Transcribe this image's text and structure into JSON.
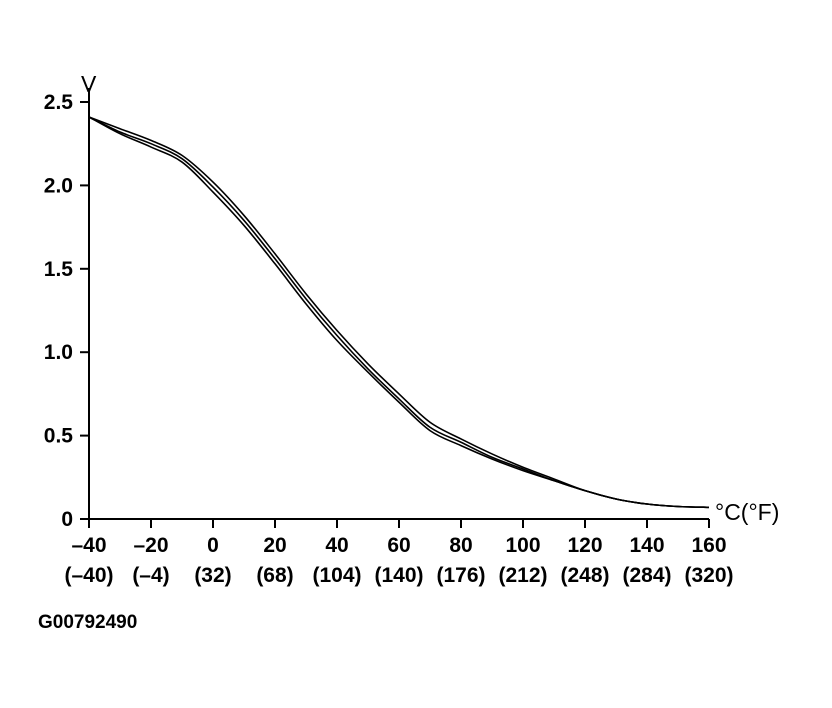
{
  "chart_data": {
    "type": "line",
    "title": "",
    "ylabel": "V",
    "xlabel": "°C(°F)",
    "xlim": [
      -40,
      160
    ],
    "ylim": [
      0,
      2.5
    ],
    "x_ticks": [
      -40,
      -20,
      0,
      20,
      40,
      60,
      80,
      100,
      120,
      140,
      160
    ],
    "x_tick_labels": [
      "–40",
      "–20",
      "0",
      "20",
      "40",
      "60",
      "80",
      "100",
      "120",
      "140",
      "160"
    ],
    "x_secondary_tick_labels": [
      "(–40)",
      "(–4)",
      "(32)",
      "(68)",
      "(104)",
      "(140)",
      "(176)",
      "(212)",
      "(248)",
      "(284)",
      "(320)"
    ],
    "y_ticks": [
      0,
      0.5,
      1.0,
      1.5,
      2.0,
      2.5
    ],
    "y_tick_labels": [
      "0",
      "0.5",
      "1.0",
      "1.5",
      "2.0",
      "2.5"
    ],
    "grid": false,
    "series": [
      {
        "x": [
          -40,
          -30,
          -20,
          -10,
          0,
          10,
          20,
          30,
          40,
          50,
          60,
          70,
          80,
          90,
          100,
          110,
          120,
          130,
          140,
          150,
          160
        ],
        "values": [
          2.41,
          2.34,
          2.27,
          2.18,
          2.02,
          1.82,
          1.59,
          1.35,
          1.13,
          0.93,
          0.75,
          0.58,
          0.48,
          0.39,
          0.31,
          0.24,
          0.17,
          0.12,
          0.09,
          0.075,
          0.07
        ]
      },
      {
        "x": [
          -40,
          -30,
          -20,
          -10,
          0,
          10,
          20,
          30,
          40,
          50,
          60,
          70,
          80,
          90,
          100,
          110,
          120,
          130,
          140,
          150,
          160
        ],
        "values": [
          2.41,
          2.32,
          2.25,
          2.16,
          1.99,
          1.79,
          1.56,
          1.32,
          1.1,
          0.9,
          0.72,
          0.55,
          0.46,
          0.37,
          0.3,
          0.23,
          0.17,
          0.12,
          0.09,
          0.075,
          0.07
        ]
      },
      {
        "x": [
          -40,
          -30,
          -20,
          -10,
          0,
          10,
          20,
          30,
          40,
          50,
          60,
          70,
          80,
          90,
          100,
          110,
          120,
          130,
          140,
          150,
          160
        ],
        "values": [
          2.41,
          2.31,
          2.23,
          2.14,
          1.96,
          1.76,
          1.53,
          1.29,
          1.07,
          0.88,
          0.7,
          0.53,
          0.44,
          0.36,
          0.29,
          0.23,
          0.17,
          0.12,
          0.09,
          0.075,
          0.07
        ]
      }
    ]
  },
  "figure_id": "G00792490",
  "colors": {
    "ink": "#000000",
    "background": "#ffffff"
  }
}
